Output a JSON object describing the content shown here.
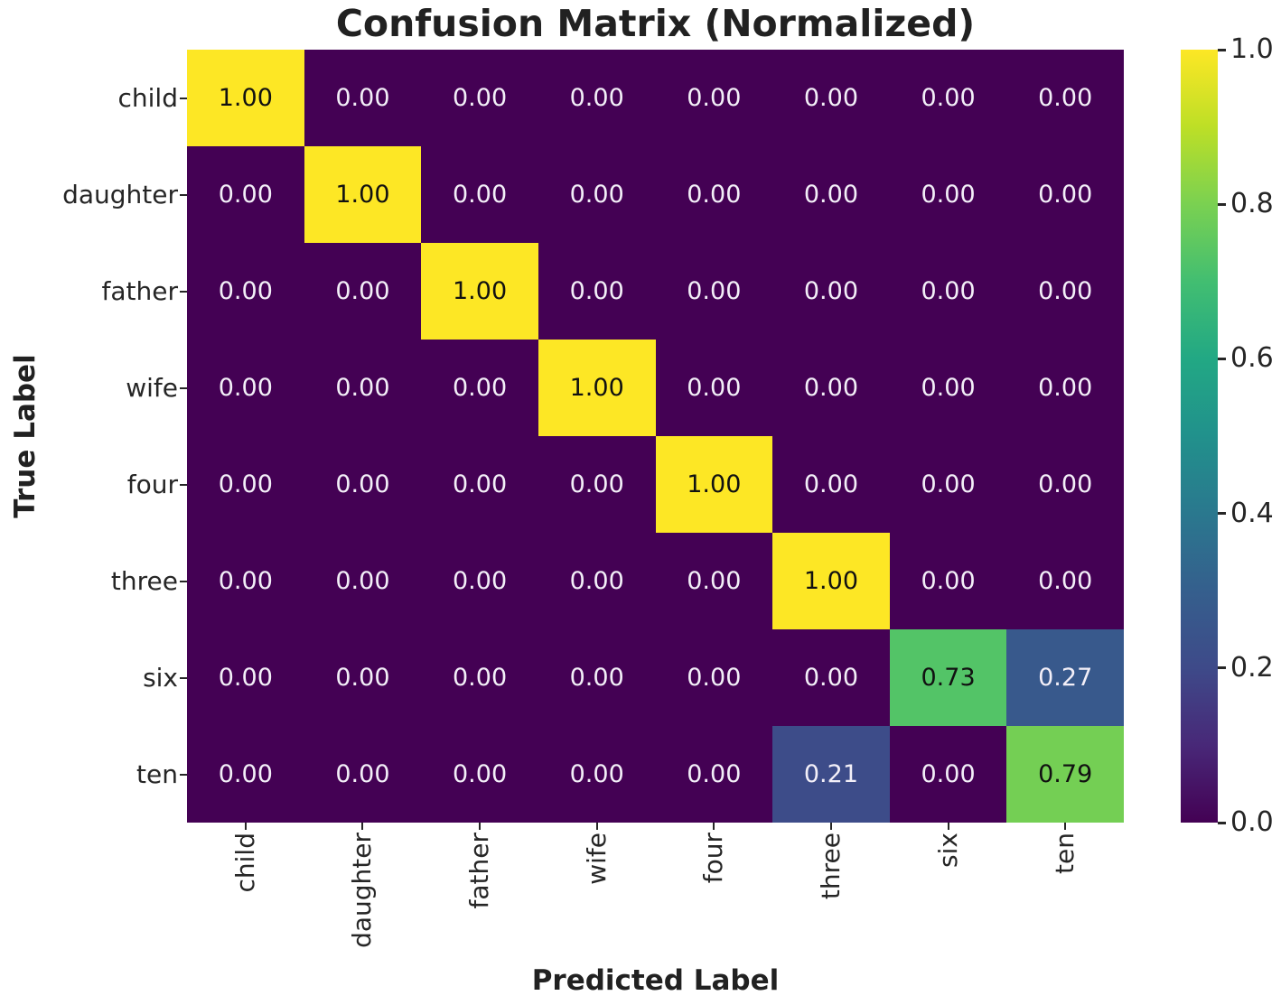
{
  "chart_data": {
    "type": "heatmap",
    "title": "Confusion Matrix (Normalized)",
    "xlabel": "Predicted Label",
    "ylabel": "True Label",
    "x_categories": [
      "child",
      "daughter",
      "father",
      "wife",
      "four",
      "three",
      "six",
      "ten"
    ],
    "y_categories": [
      "child",
      "daughter",
      "father",
      "wife",
      "four",
      "three",
      "six",
      "ten"
    ],
    "values": [
      [
        1.0,
        0.0,
        0.0,
        0.0,
        0.0,
        0.0,
        0.0,
        0.0
      ],
      [
        0.0,
        1.0,
        0.0,
        0.0,
        0.0,
        0.0,
        0.0,
        0.0
      ],
      [
        0.0,
        0.0,
        1.0,
        0.0,
        0.0,
        0.0,
        0.0,
        0.0
      ],
      [
        0.0,
        0.0,
        0.0,
        1.0,
        0.0,
        0.0,
        0.0,
        0.0
      ],
      [
        0.0,
        0.0,
        0.0,
        0.0,
        1.0,
        0.0,
        0.0,
        0.0
      ],
      [
        0.0,
        0.0,
        0.0,
        0.0,
        0.0,
        1.0,
        0.0,
        0.0
      ],
      [
        0.0,
        0.0,
        0.0,
        0.0,
        0.0,
        0.0,
        0.73,
        0.27
      ],
      [
        0.0,
        0.0,
        0.0,
        0.0,
        0.0,
        0.21,
        0.0,
        0.79
      ]
    ],
    "value_decimals": 2,
    "colormap": "viridis",
    "vmin": 0.0,
    "vmax": 1.0,
    "colorbar_ticks": [
      1.0,
      0.8,
      0.6,
      0.4,
      0.2,
      0.0
    ],
    "colorbar_tick_decimals": 1,
    "colorbar_position": "right",
    "grid": false,
    "accent_colors": {
      "cmap_min": "#440154",
      "cmap_max": "#fde725",
      "text_on_dark_cell": "#f3eff8",
      "text_on_light_cell": "#111111",
      "axis_text": "#262626",
      "title_text": "#212121"
    }
  }
}
